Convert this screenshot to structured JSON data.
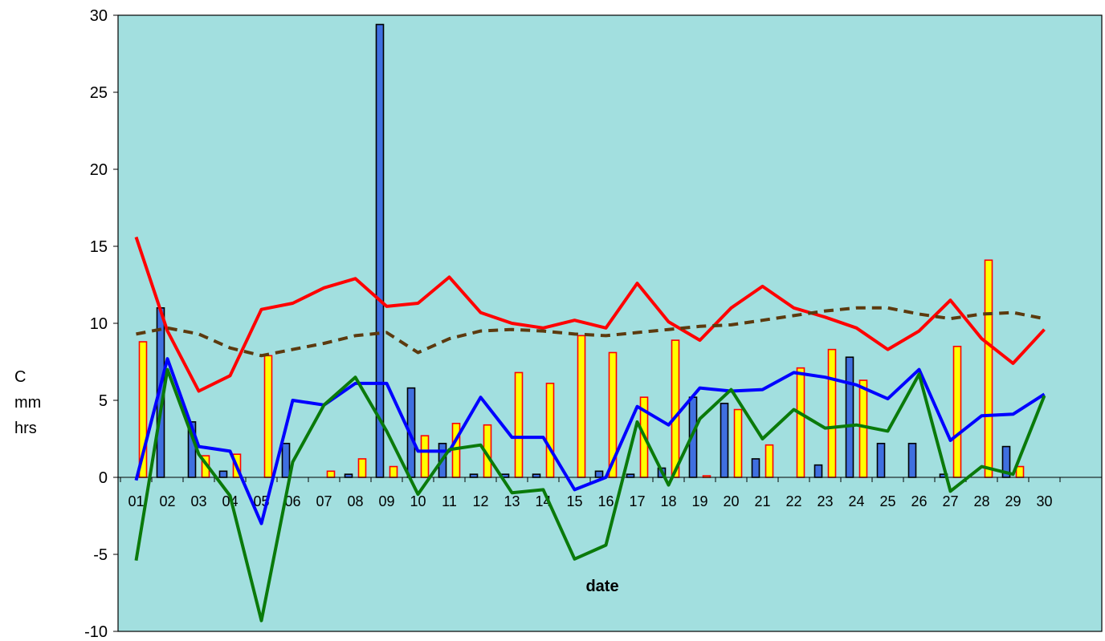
{
  "chart_data": {
    "type": "bar",
    "categories": [
      "01",
      "02",
      "03",
      "04",
      "05",
      "06",
      "07",
      "08",
      "09",
      "10",
      "11",
      "12",
      "13",
      "14",
      "15",
      "16",
      "17",
      "18",
      "19",
      "20",
      "21",
      "22",
      "23",
      "24",
      "25",
      "26",
      "27",
      "28",
      "29",
      "30"
    ],
    "xlabel": "date",
    "ylabel_lines": [
      "C",
      "mm",
      "hrs"
    ],
    "ylim": [
      -10,
      30
    ],
    "yticks": [
      -10,
      -5,
      0,
      5,
      10,
      15,
      20,
      25,
      30
    ],
    "grid": false,
    "plot_background": "#A2DFDF",
    "bar_series": [
      {
        "fill": "#3F6FE0",
        "stroke": "#000000",
        "values": [
          0,
          11,
          3.6,
          0.4,
          0,
          2.2,
          0,
          0.2,
          29.4,
          5.8,
          2.2,
          0.2,
          0.2,
          0.2,
          0,
          0.4,
          0.2,
          0.6,
          5.2,
          4.8,
          1.2,
          0,
          0.8,
          7.8,
          2.2,
          2.2,
          0.2,
          0,
          2.0,
          0
        ]
      },
      {
        "fill": "#FFFF00",
        "stroke": "#FF0000",
        "values": [
          8.8,
          0,
          1.4,
          1.5,
          7.9,
          0,
          0.4,
          1.2,
          0.7,
          2.7,
          3.5,
          3.4,
          6.8,
          6.1,
          9.2,
          8.1,
          5.2,
          8.9,
          0.1,
          4.4,
          2.1,
          7.1,
          8.3,
          6.3,
          0,
          0,
          8.5,
          14.1,
          0.7,
          0
        ]
      }
    ],
    "line_series": [
      {
        "color": "#FF0000",
        "dashed": false,
        "values": [
          15.6,
          9.5,
          5.6,
          6.6,
          10.9,
          11.3,
          12.3,
          12.9,
          11.1,
          11.3,
          13.0,
          10.7,
          10.0,
          9.7,
          10.2,
          9.7,
          12.6,
          10.1,
          8.9,
          11.0,
          12.4,
          11.0,
          10.4,
          9.7,
          8.3,
          9.5,
          11.5,
          9.0,
          7.4,
          9.6
        ]
      },
      {
        "color": "#5C3A0E",
        "dashed": true,
        "values": [
          9.3,
          9.7,
          9.3,
          8.4,
          7.9,
          8.3,
          8.7,
          9.2,
          9.4,
          8.1,
          9.0,
          9.5,
          9.6,
          9.5,
          9.3,
          9.2,
          9.4,
          9.6,
          9.8,
          9.9,
          10.2,
          10.5,
          10.8,
          11.0,
          11.0,
          10.6,
          10.3,
          10.6,
          10.7,
          10.3
        ]
      },
      {
        "color": "#0000FF",
        "dashed": false,
        "values": [
          -0.2,
          7.7,
          2.0,
          1.7,
          -3.0,
          5.0,
          4.7,
          6.1,
          6.1,
          1.7,
          1.7,
          5.2,
          2.6,
          2.6,
          -0.8,
          0.0,
          4.6,
          3.4,
          5.8,
          5.6,
          5.7,
          6.8,
          6.5,
          6.0,
          5.1,
          7.0,
          2.4,
          4.0,
          4.1,
          5.4
        ]
      },
      {
        "color": "#0A7A0A",
        "dashed": false,
        "values": [
          -5.4,
          7.0,
          1.5,
          -1.2,
          -9.3,
          1.0,
          4.7,
          6.5,
          3.0,
          -1.1,
          1.8,
          2.1,
          -1.0,
          -0.8,
          -5.3,
          -4.4,
          3.6,
          -0.5,
          3.8,
          5.7,
          2.5,
          4.4,
          3.2,
          3.4,
          3.0,
          6.7,
          -0.9,
          0.7,
          0.2,
          5.3
        ]
      }
    ]
  }
}
